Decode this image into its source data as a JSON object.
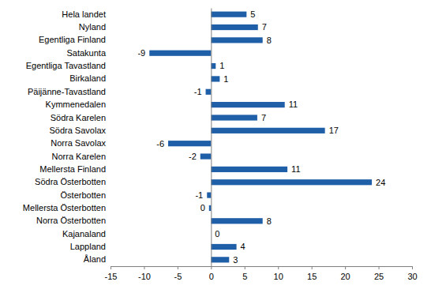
{
  "chart_data": {
    "type": "bar",
    "orientation": "horizontal",
    "categories": [
      "Hela landet",
      "Nyland",
      "Egentliga Finland",
      "Satakunta",
      "Egentliga Tavastland",
      "Birkaland",
      "Päijänne-Tavastland",
      "Kymmenedalen",
      "Södra Karelen",
      "Södra Savolax",
      "Norra Savolax",
      "Norra Karelen",
      "Mellersta Finland",
      "Södra Österbotten",
      "Österbotten",
      "Mellersta Österbotten",
      "Norra Österbotten",
      "Kajanaland",
      "Lappland",
      "Åland"
    ],
    "values": [
      5.3,
      7.0,
      7.7,
      -9.2,
      0.7,
      1.3,
      -0.8,
      11.0,
      6.9,
      17.0,
      -6.4,
      -1.6,
      11.4,
      24.0,
      -0.6,
      -0.3,
      7.7,
      0.0,
      3.8,
      2.7
    ],
    "value_labels": [
      "5",
      "7",
      "8",
      "-9",
      "1",
      "1",
      "-1",
      "11",
      "7",
      "17",
      "-6",
      "-2",
      "11",
      "24",
      "-1",
      "0",
      "8",
      "0",
      "4",
      "3"
    ],
    "data_labels": true,
    "color": "#1f5fa8",
    "xlim": [
      -15,
      30
    ],
    "xticks": [
      -15,
      -10,
      -5,
      0,
      5,
      10,
      15,
      20,
      25,
      30
    ],
    "grid": false
  }
}
